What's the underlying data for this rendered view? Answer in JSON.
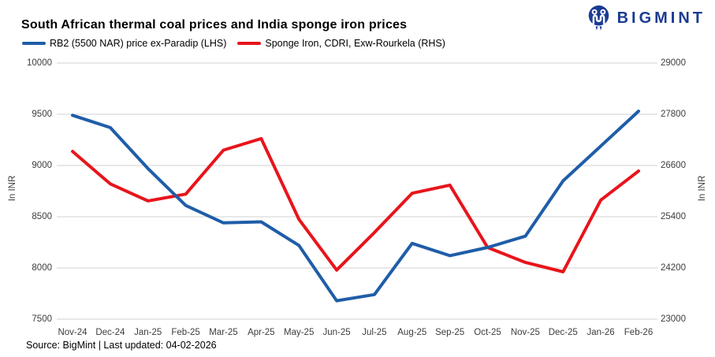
{
  "header": {
    "title": "South African thermal coal prices and India sponge iron prices",
    "brand": "BIGMINT"
  },
  "colors": {
    "series_blue": "#1f5da8",
    "series_red": "#e8141b",
    "brand_navy": "#1b3c91",
    "gridline": "#d9d9d9",
    "tick_text": "#3d3d3d"
  },
  "footer": {
    "source": "Source: BigMint | Last updated: 04-02-2026"
  },
  "chart_data": {
    "type": "line",
    "title": "South African thermal coal prices and India sponge iron prices",
    "categories": [
      "Nov-24",
      "Dec-24",
      "Jan-25",
      "Feb-25",
      "Mar-25",
      "Apr-25",
      "May-25",
      "Jun-25",
      "Jul-25",
      "Aug-25",
      "Sep-25",
      "Oct-25",
      "Nov-25",
      "Dec-25",
      "Jan-26",
      "Feb-26"
    ],
    "series": [
      {
        "name": "RB2 (5500 NAR) price ex-Paradip (LHS)",
        "axis": "left",
        "color": "#1f5da8",
        "values": [
          9490,
          9370,
          8970,
          8610,
          8440,
          8450,
          8220,
          7680,
          7740,
          8240,
          8120,
          8200,
          8310,
          8850,
          9190,
          9530
        ]
      },
      {
        "name": "Sponge Iron, CDRI, Exw-Rourkela (RHS)",
        "axis": "right",
        "color": "#e8141b",
        "values": [
          26930,
          26170,
          25770,
          25930,
          26960,
          27230,
          25340,
          24150,
          25030,
          25950,
          26140,
          24680,
          24330,
          24110,
          25790,
          26470
        ]
      }
    ],
    "left_axis": {
      "label": "In INR",
      "min": 7500,
      "max": 10000,
      "ticks": [
        10000,
        9500,
        9000,
        8500,
        8000,
        7500
      ]
    },
    "right_axis": {
      "label": "In INR",
      "min": 23000,
      "max": 29000,
      "ticks": [
        29000,
        27800,
        26600,
        25400,
        24200,
        23000
      ]
    },
    "grid": "horizontal",
    "legend_position": "top-left"
  }
}
